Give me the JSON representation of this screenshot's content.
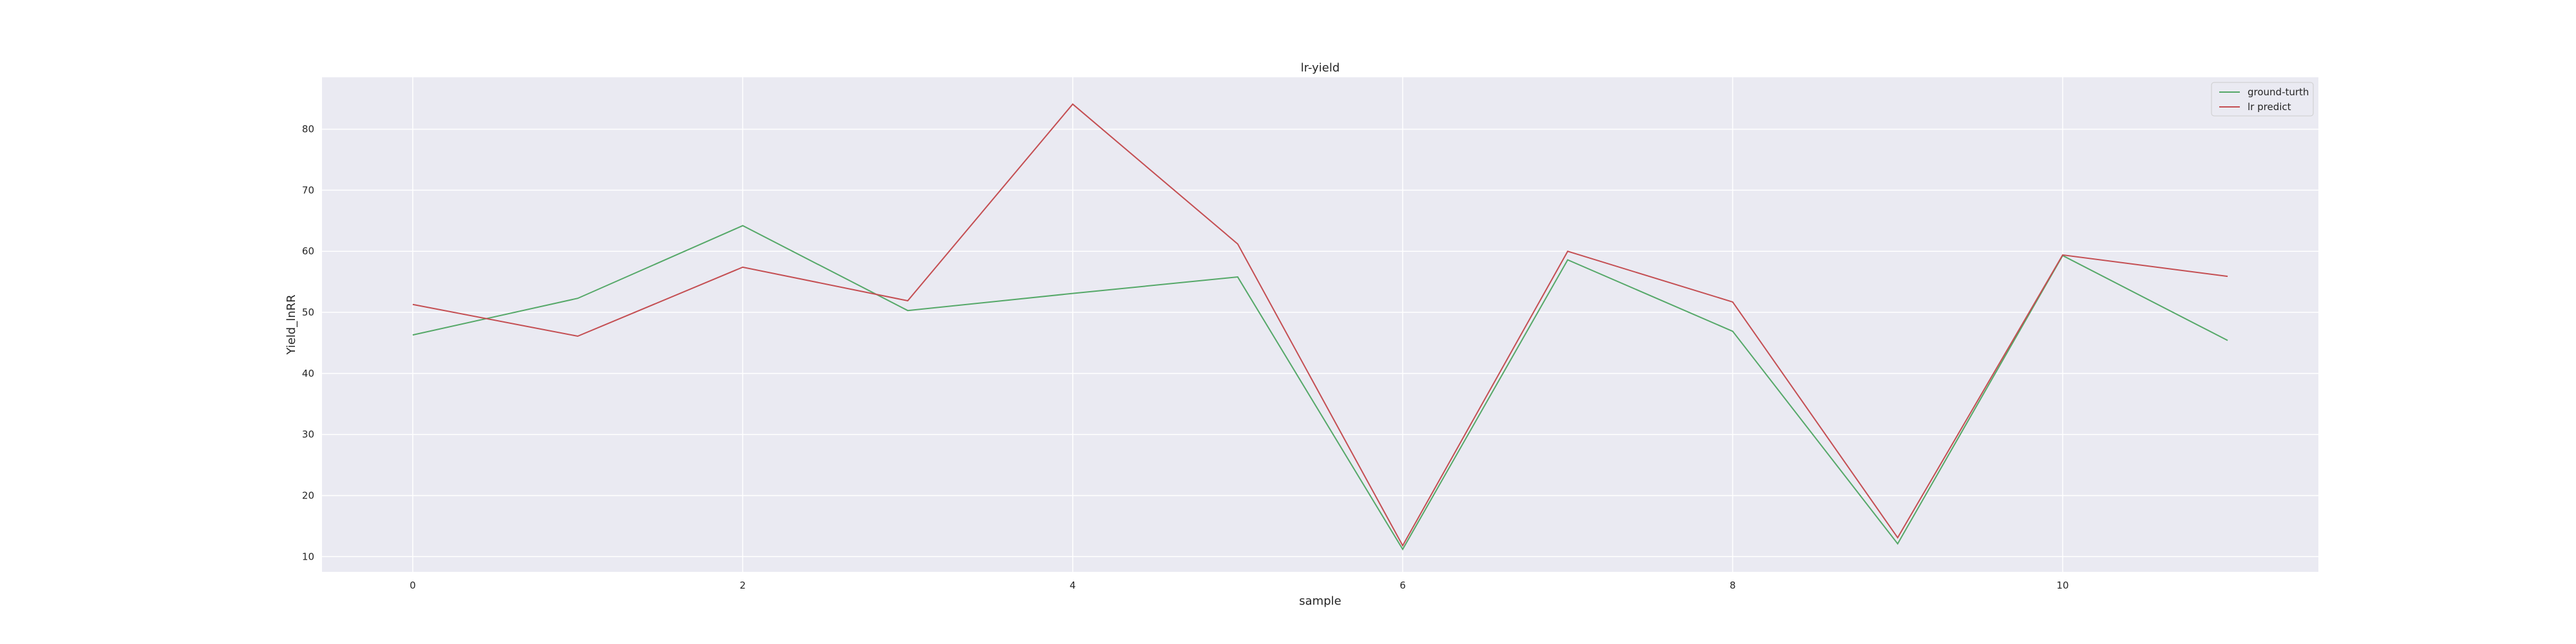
{
  "chart_data": {
    "type": "line",
    "title": "lr-yield",
    "xlabel": "sample",
    "ylabel": "Yield_lnRR",
    "x": [
      0,
      1,
      2,
      3,
      4,
      5,
      6,
      7,
      8,
      9,
      10,
      11
    ],
    "xticks": [
      0,
      2,
      4,
      6,
      8,
      10
    ],
    "yticks": [
      10,
      20,
      30,
      40,
      50,
      60,
      70,
      80
    ],
    "xlim": [
      -0.55,
      11.55
    ],
    "ylim": [
      7.5,
      88.5
    ],
    "grid": true,
    "legend_position": "top-right",
    "background": "#EAEAF2",
    "series": [
      {
        "name": "ground-turth",
        "color": "#55A868",
        "values": [
          46.3,
          52.3,
          64.2,
          50.3,
          53.1,
          55.8,
          11.2,
          58.6,
          46.9,
          12.1,
          59.3,
          45.4
        ]
      },
      {
        "name": "lr predict",
        "color": "#C44E52",
        "values": [
          51.3,
          46.1,
          57.4,
          51.9,
          84.1,
          61.2,
          11.8,
          60.0,
          51.7,
          13.1,
          59.4,
          55.9
        ]
      }
    ]
  }
}
